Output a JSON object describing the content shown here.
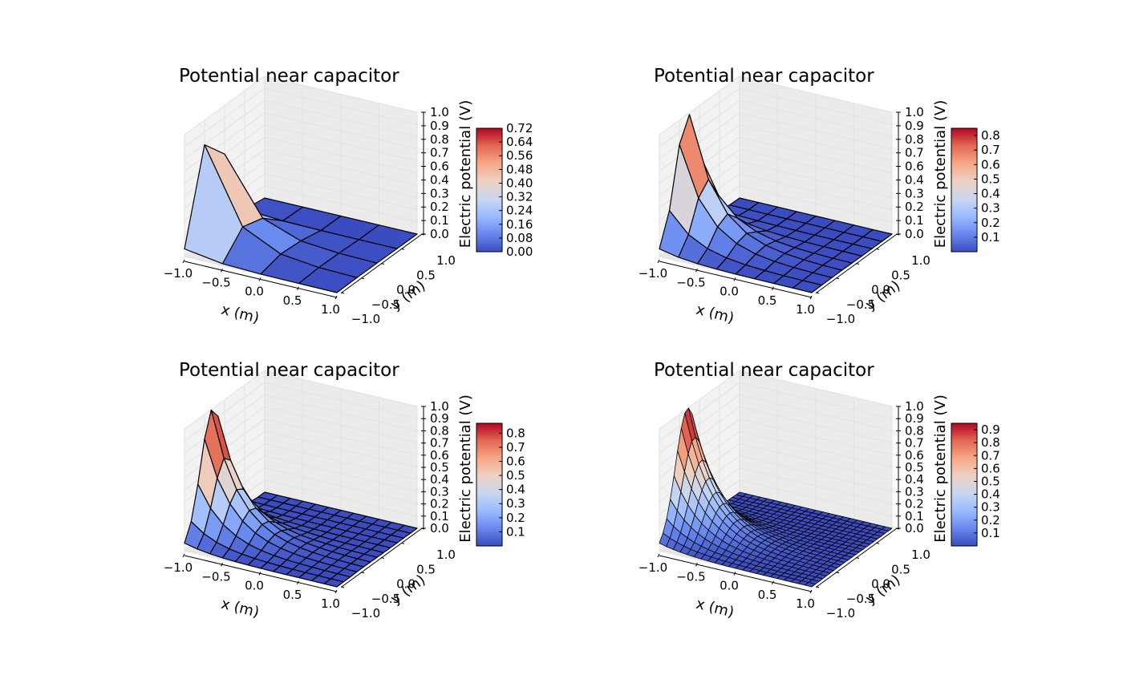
{
  "figure": {
    "background": "#ffffff"
  },
  "colormap": {
    "name": "coolwarm",
    "stops": [
      "#3b4cc0",
      "#6788ee",
      "#9abbff",
      "#c9d7f0",
      "#edd1c2",
      "#f7a889",
      "#e26952",
      "#b40426"
    ]
  },
  "chart_data": [
    {
      "type": "surface3d",
      "title": "Potential near capacitor",
      "grid_n": 4,
      "xlabel": "x (m)",
      "ylabel": "y (m)",
      "zlabel": "",
      "x_ticks": [
        "−1.0",
        "−0.5",
        "0.0",
        "0.5",
        "1.0"
      ],
      "y_ticks": [
        "−1.0",
        "−0.5",
        "0.0",
        "0.5",
        "1.0"
      ],
      "z_ticks": [
        "0.0",
        "0.1",
        "0.2",
        "0.3",
        "0.4",
        "0.6",
        "0.7",
        "0.8",
        "0.9",
        "1.0"
      ],
      "xlim": [
        -1,
        1
      ],
      "ylim": [
        -1,
        1
      ],
      "zlim": [
        0,
        1
      ],
      "colorbar": {
        "label": "Electric potential (V)",
        "range": [
          0.0,
          0.72
        ],
        "ticks": [
          "0.00",
          "0.08",
          "0.16",
          "0.24",
          "0.32",
          "0.40",
          "0.48",
          "0.56",
          "0.64",
          "0.72"
        ]
      }
    },
    {
      "type": "surface3d",
      "title": "Potential near capacitor",
      "grid_n": 8,
      "xlabel": "x (m)",
      "ylabel": "y (m)",
      "zlabel": "",
      "x_ticks": [
        "−1.0",
        "−0.5",
        "0.0",
        "0.5",
        "1.0"
      ],
      "y_ticks": [
        "−1.0",
        "−0.5",
        "0.0",
        "0.5",
        "1.0"
      ],
      "z_ticks": [
        "0.0",
        "0.1",
        "0.2",
        "0.3",
        "0.4",
        "0.6",
        "0.7",
        "0.8",
        "0.9",
        "1.0"
      ],
      "xlim": [
        -1,
        1
      ],
      "ylim": [
        -1,
        1
      ],
      "zlim": [
        0,
        1
      ],
      "colorbar": {
        "label": "Electric potential (V)",
        "range": [
          0.0,
          0.85
        ],
        "ticks": [
          "0.1",
          "0.2",
          "0.3",
          "0.4",
          "0.5",
          "0.6",
          "0.7",
          "0.8"
        ]
      }
    },
    {
      "type": "surface3d",
      "title": "Potential near capacitor",
      "grid_n": 12,
      "xlabel": "x (m)",
      "ylabel": "y (m)",
      "zlabel": "",
      "x_ticks": [
        "−1.0",
        "−0.5",
        "0.0",
        "0.5",
        "1.0"
      ],
      "y_ticks": [
        "−1.0",
        "−0.5",
        "0.0",
        "0.5",
        "1.0"
      ],
      "z_ticks": [
        "0.0",
        "0.1",
        "0.2",
        "0.3",
        "0.4",
        "0.5",
        "0.6",
        "0.7",
        "0.8",
        "0.9",
        "1.0"
      ],
      "xlim": [
        -1,
        1
      ],
      "ylim": [
        -1,
        1
      ],
      "zlim": [
        0,
        1
      ],
      "colorbar": {
        "label": "Electric potential (V)",
        "range": [
          0.0,
          0.87
        ],
        "ticks": [
          "0.1",
          "0.2",
          "0.3",
          "0.4",
          "0.5",
          "0.6",
          "0.7",
          "0.8"
        ]
      }
    },
    {
      "type": "surface3d",
      "title": "Potential near capacitor",
      "grid_n": 22,
      "xlabel": "x (m)",
      "ylabel": "y (m)",
      "zlabel": "",
      "x_ticks": [
        "−1.0",
        "−0.5",
        "0.0",
        "0.5",
        "1.0"
      ],
      "y_ticks": [
        "−1.0",
        "−0.5",
        "0.0",
        "0.5",
        "1.0"
      ],
      "z_ticks": [
        "0.0",
        "0.1",
        "0.2",
        "0.3",
        "0.4",
        "0.5",
        "0.6",
        "0.7",
        "0.8",
        "0.9",
        "1.0"
      ],
      "xlim": [
        -1,
        1
      ],
      "ylim": [
        -1,
        1
      ],
      "zlim": [
        0,
        1
      ],
      "colorbar": {
        "label": "Electric potential (V)",
        "range": [
          0.0,
          0.95
        ],
        "ticks": [
          "0.1",
          "0.2",
          "0.3",
          "0.4",
          "0.5",
          "0.6",
          "0.7",
          "0.8",
          "0.9"
        ]
      }
    }
  ]
}
